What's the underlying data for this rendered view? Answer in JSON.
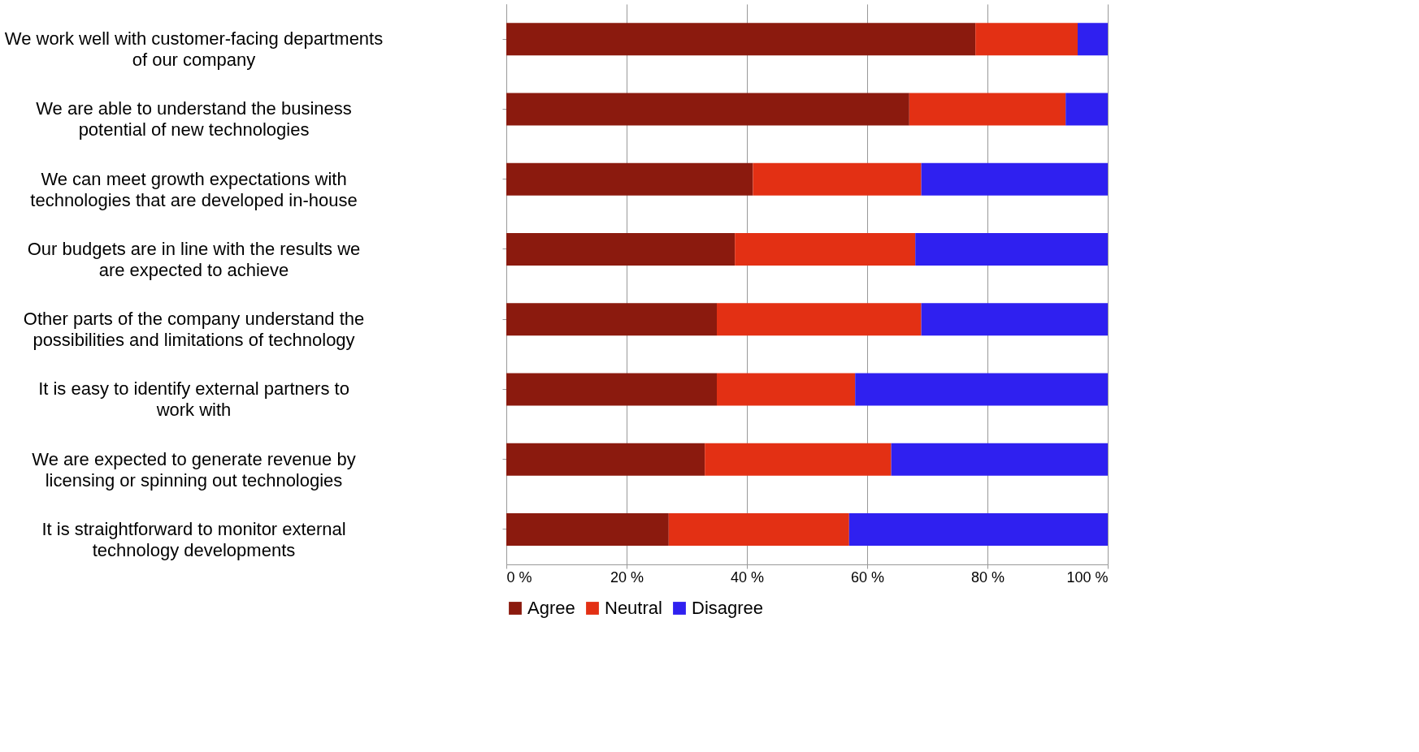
{
  "chart_data": {
    "type": "bar",
    "orientation": "horizontal",
    "stacked": true,
    "categories": [
      "We work well with customer-facing departments of our company",
      "We are able to understand the business potential of new technologies",
      "We can meet growth expectations with technologies that are developed in-house",
      "Our budgets are in line with the results we are expected to achieve",
      "Other parts of the company understand the possibilities and limitations of technology",
      "It is easy to identify external partners to work with",
      "We are expected to generate revenue by licensing or spinning out technologies",
      "It is straightforward to monitor external technology developments"
    ],
    "series": [
      {
        "name": "Agree",
        "color": "#8b1a0e",
        "values": [
          78,
          67,
          41,
          38,
          35,
          35,
          33,
          27
        ]
      },
      {
        "name": "Neutral",
        "color": "#e33014",
        "values": [
          17,
          26,
          28,
          30,
          34,
          23,
          31,
          30
        ]
      },
      {
        "name": "Disagree",
        "color": "#2f20f0",
        "values": [
          5,
          7,
          31,
          32,
          31,
          42,
          36,
          43
        ]
      }
    ],
    "xlim": [
      0,
      100
    ],
    "xticks": [
      {
        "value": 0,
        "label": "0 %"
      },
      {
        "value": 20,
        "label": "20 %"
      },
      {
        "value": 40,
        "label": "40 %"
      },
      {
        "value": 60,
        "label": "60 %"
      },
      {
        "value": 80,
        "label": "80 %"
      },
      {
        "value": 100,
        "label": "100 %"
      }
    ],
    "grid": "x",
    "legend": "bottom"
  }
}
